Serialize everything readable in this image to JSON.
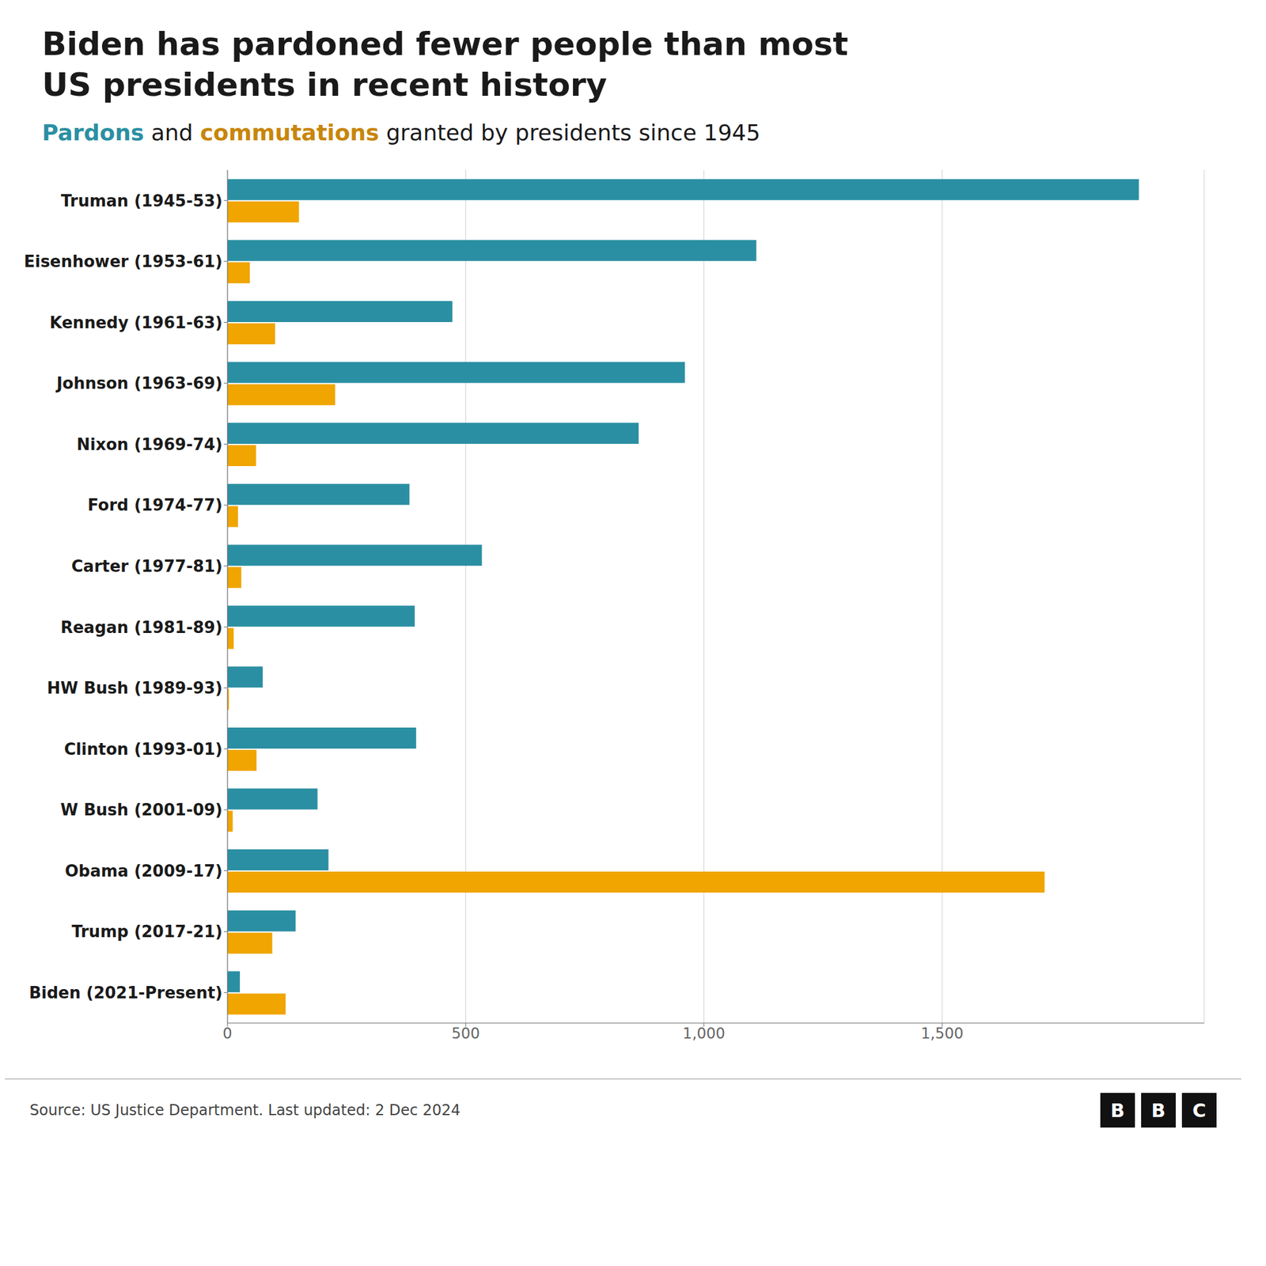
{
  "chart_data": {
    "type": "bar",
    "orientation": "horizontal",
    "title": [
      "Biden has pardoned fewer people than most",
      "US presidents in recent history"
    ],
    "subtitle": [
      {
        "text": "Pardons",
        "color": "#2B8FA3",
        "bold": true
      },
      {
        "text": " and ",
        "color": "#1a1a1a",
        "bold": false
      },
      {
        "text": "commutations",
        "color": "#C8860A",
        "bold": true
      },
      {
        "text": " granted by presidents since 1945",
        "color": "#1a1a1a",
        "bold": false
      }
    ],
    "categories": [
      "Truman (1945-53)",
      "Eisenhower (1953-61)",
      "Kennedy (1961-63)",
      "Johnson (1963-69)",
      "Nixon (1969-74)",
      "Ford (1974-77)",
      "Carter (1977-81)",
      "Reagan (1981-89)",
      "HW Bush (1989-93)",
      "Clinton (1993-01)",
      "W Bush (2001-09)",
      "Obama (2009-17)",
      "Trump (2017-21)",
      "Biden (2021-Present)"
    ],
    "series": [
      {
        "name": "Pardons",
        "color": "#2B8FA3",
        "values": [
          1913,
          1110,
          472,
          960,
          863,
          382,
          534,
          393,
          74,
          396,
          189,
          212,
          143,
          26
        ]
      },
      {
        "name": "commutations",
        "color": "#F0A500",
        "values": [
          150,
          47,
          100,
          226,
          60,
          22,
          29,
          13,
          3,
          61,
          11,
          1715,
          94,
          122
        ]
      }
    ],
    "xlim": [
      0,
      2050
    ],
    "xticks": [
      0,
      500,
      {
        "value": 1000,
        "label": "1,000"
      },
      {
        "value": 1500,
        "label": "1,500"
      }
    ],
    "grid": true,
    "source": "Source: US Justice Department. Last updated: 2 Dec 2024",
    "logo_letters": [
      "B",
      "B",
      "C"
    ]
  }
}
